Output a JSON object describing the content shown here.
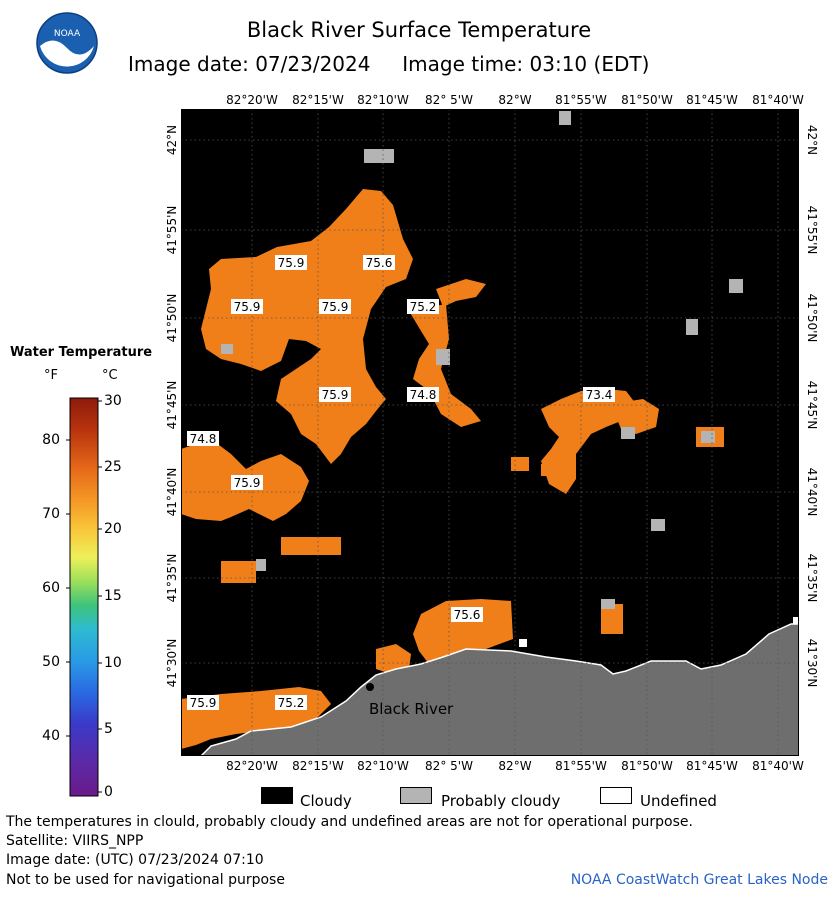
{
  "header": {
    "title": "Black River Surface Temperature",
    "subtitle": "Image date: 07/23/2024     Image time: 03:10 (EDT)"
  },
  "logo": {
    "text": "NOAA",
    "icon": "noaa-logo-icon"
  },
  "map": {
    "lon_labels": [
      "82°20'W",
      "82°15'W",
      "82°10'W",
      "82° 5'W",
      "82°W",
      "81°55'W",
      "81°50'W",
      "81°45'W",
      "81°40'W"
    ],
    "lat_labels": [
      "42°N",
      "41°55'N",
      "41°50'N",
      "41°45'N",
      "41°40'N",
      "41°35'N",
      "41°30'N"
    ],
    "place_label": "Black River",
    "temperature_labels": [
      "75.9",
      "75.6",
      "75.9",
      "75.9",
      "75.2",
      "75.9",
      "74.8",
      "73.4",
      "74.8",
      "75.9",
      "75.6",
      "75.9",
      "75.2"
    ],
    "colors": {
      "cloud": "#000000",
      "land": "#6e6e6e",
      "water_warm": "#f07f1a",
      "probably_cloudy": "#b4b4b4"
    }
  },
  "legend": {
    "title": "Water Temperature",
    "unit_f": "°F",
    "unit_c": "°C",
    "ticks_f": [
      "80",
      "70",
      "60",
      "50",
      "40"
    ],
    "ticks_c": [
      "30",
      "25",
      "20",
      "15",
      "10",
      "5",
      "0"
    ]
  },
  "key": {
    "cloudy": "Cloudy",
    "probably_cloudy": "Probably cloudy",
    "undefined": "Undefined"
  },
  "footer": {
    "note": "The temperatures in clould, probably cloudy and undefined areas are not for operational purpose.",
    "satellite": "Satellite: VIIRS_NPP",
    "image_date": "Image date: (UTC) 07/23/2024  07:10",
    "nav_warning": "Not to be used for navigational purpose",
    "credit": "NOAA CoastWatch Great Lakes Node"
  }
}
